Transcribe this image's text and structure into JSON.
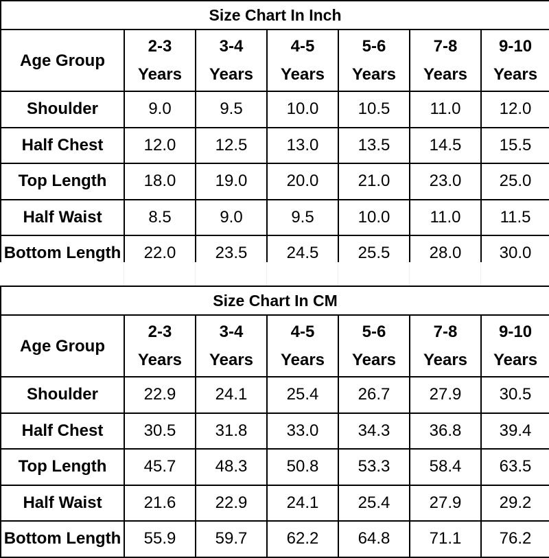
{
  "tables": [
    {
      "title": "Size Chart In Inch",
      "row_header": "Age Group",
      "columns": [
        {
          "range": "2-3",
          "unit": "Years"
        },
        {
          "range": "3-4",
          "unit": "Years"
        },
        {
          "range": "4-5",
          "unit": "Years"
        },
        {
          "range": "5-6",
          "unit": "Years"
        },
        {
          "range": "7-8",
          "unit": "Years"
        },
        {
          "range": "9-10",
          "unit": "Years"
        }
      ],
      "rows": [
        {
          "label": "Shoulder",
          "values": [
            "9.0",
            "9.5",
            "10.0",
            "10.5",
            "11.0",
            "12.0"
          ]
        },
        {
          "label": "Half Chest",
          "values": [
            "12.0",
            "12.5",
            "13.0",
            "13.5",
            "14.5",
            "15.5"
          ]
        },
        {
          "label": "Top Length",
          "values": [
            "18.0",
            "19.0",
            "20.0",
            "21.0",
            "23.0",
            "25.0"
          ]
        },
        {
          "label": "Half Waist",
          "values": [
            "8.5",
            "9.0",
            "9.5",
            "10.0",
            "11.0",
            "11.5"
          ]
        },
        {
          "label": "Bottom Length",
          "values": [
            "22.0",
            "23.5",
            "24.5",
            "25.5",
            "28.0",
            "30.0"
          ]
        }
      ]
    },
    {
      "title": "Size Chart In CM",
      "row_header": "Age Group",
      "columns": [
        {
          "range": "2-3",
          "unit": "Years"
        },
        {
          "range": "3-4",
          "unit": "Years"
        },
        {
          "range": "4-5",
          "unit": "Years"
        },
        {
          "range": "5-6",
          "unit": "Years"
        },
        {
          "range": "7-8",
          "unit": "Years"
        },
        {
          "range": "9-10",
          "unit": "Years"
        }
      ],
      "rows": [
        {
          "label": "Shoulder",
          "values": [
            "22.9",
            "24.1",
            "25.4",
            "26.7",
            "27.9",
            "30.5"
          ]
        },
        {
          "label": "Half Chest",
          "values": [
            "30.5",
            "31.8",
            "33.0",
            "34.3",
            "36.8",
            "39.4"
          ]
        },
        {
          "label": "Top Length",
          "values": [
            "45.7",
            "48.3",
            "50.8",
            "53.3",
            "58.4",
            "63.5"
          ]
        },
        {
          "label": "Half Waist",
          "values": [
            "21.6",
            "22.9",
            "24.1",
            "25.4",
            "27.9",
            "29.2"
          ]
        },
        {
          "label": "Bottom Length",
          "values": [
            "55.9",
            "59.7",
            "62.2",
            "64.8",
            "71.1",
            "76.2"
          ]
        }
      ]
    }
  ]
}
